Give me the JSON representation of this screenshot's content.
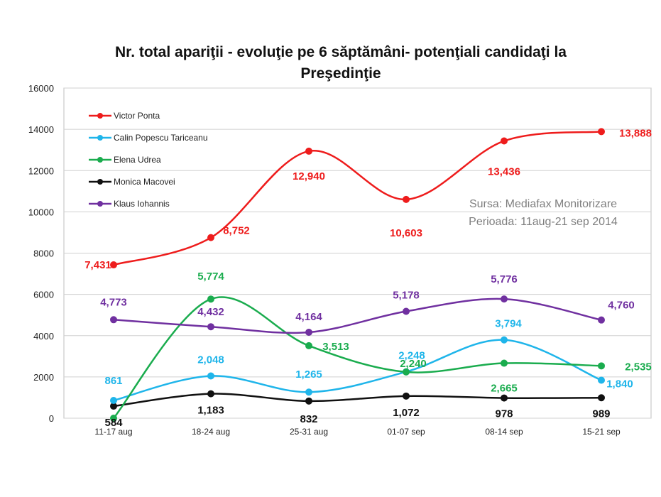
{
  "chart_data": {
    "type": "line",
    "title_line1": "Nr. total apariţii - evoluţie pe 6 săptămâni- potenţiali candidaţi la",
    "title_line2": "Preşedinţie",
    "categories": [
      "11-17 aug",
      "18-24 aug",
      "25-31 aug",
      "01-07 sep",
      "08-14 sep",
      "15-21 sep"
    ],
    "ylim": [
      0,
      16000
    ],
    "yticks": [
      "0",
      "2000",
      "4000",
      "6000",
      "8000",
      "10000",
      "12000",
      "14000",
      "16000"
    ],
    "grid": true,
    "legend_position": "top-left",
    "series": [
      {
        "name": "Victor Ponta",
        "color": "#ee1c1c",
        "values": [
          7431,
          8752,
          12940,
          10603,
          13436,
          13888
        ],
        "labels": [
          "7,431",
          "8,752",
          "12,940",
          "10,603",
          "13,436",
          "13,888"
        ]
      },
      {
        "name": "Calin Popescu Tariceanu",
        "color": "#1fb5ea",
        "values": [
          861,
          2048,
          1265,
          2248,
          3794,
          1840
        ],
        "labels": [
          "861",
          "2,048",
          "1,265",
          "2,248",
          "3,794",
          "1,840"
        ]
      },
      {
        "name": "Elena Udrea",
        "color": "#1aac4e",
        "values": [
          0,
          5774,
          3513,
          2240,
          2665,
          2535
        ],
        "labels": [
          "",
          "5,774",
          "3,513",
          "2,240",
          "2,665",
          "2,535"
        ]
      },
      {
        "name": "Monica Macovei",
        "color": "#111111",
        "values": [
          584,
          1183,
          832,
          1072,
          978,
          989
        ],
        "labels": [
          "584",
          "1,183",
          "832",
          "1,072",
          "978",
          "989"
        ]
      },
      {
        "name": "Klaus Iohannis",
        "color": "#7030a0",
        "values": [
          4773,
          4432,
          4164,
          5178,
          5776,
          4760
        ],
        "labels": [
          "4,773",
          "4,432",
          "4,164",
          "5,178",
          "5,776",
          "4,760"
        ]
      }
    ],
    "annotations": [
      "Sursa: Mediafax Monitorizare",
      "Perioada: 11aug-21 sep 2014"
    ]
  }
}
